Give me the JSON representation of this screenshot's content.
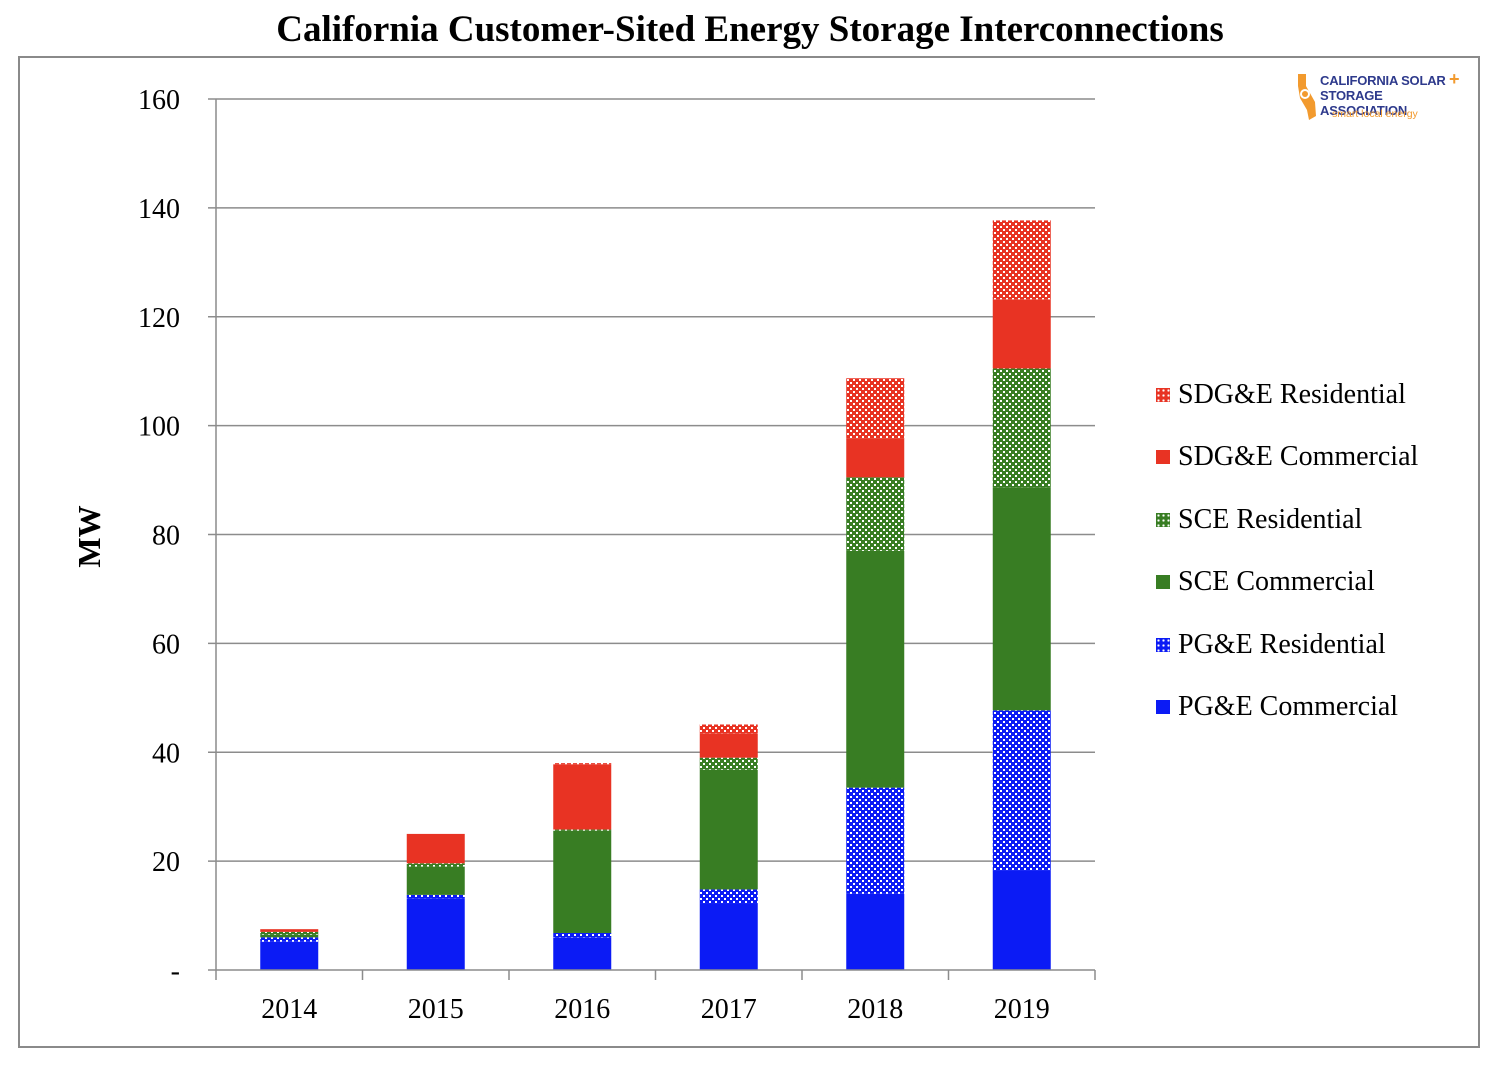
{
  "chart_data": {
    "type": "bar",
    "stacked": true,
    "title": "California Customer-Sited Energy Storage Interconnections",
    "ylabel": "MW",
    "xlabel": "",
    "ylim": [
      0,
      160
    ],
    "yticks": [
      0,
      20,
      40,
      60,
      80,
      100,
      120,
      140,
      160
    ],
    "ytick_labels": [
      "-",
      "20",
      "40",
      "60",
      "80",
      "100",
      "120",
      "140",
      "160"
    ],
    "grid": true,
    "legend_position": "right",
    "categories": [
      "2014",
      "2015",
      "2016",
      "2017",
      "2018",
      "2019"
    ],
    "series": [
      {
        "name": "PG&E Commercial",
        "color": "#0b1bf5",
        "pattern": "solid",
        "values": [
          5.2,
          13.2,
          6.0,
          12.3,
          14.0,
          18.2
        ]
      },
      {
        "name": "PG&E Residential",
        "color": "#0b1bf5",
        "pattern": "dotted",
        "values": [
          0.8,
          0.6,
          0.8,
          2.5,
          19.5,
          29.5
        ]
      },
      {
        "name": "SCE Commercial",
        "color": "#387d23",
        "pattern": "solid",
        "values": [
          0.5,
          5.2,
          18.8,
          22.0,
          43.5,
          41.0
        ]
      },
      {
        "name": "SCE Residential",
        "color": "#387d23",
        "pattern": "dotted",
        "values": [
          0.5,
          0.6,
          0.2,
          2.2,
          13.5,
          21.8
        ]
      },
      {
        "name": "SDG&E Commercial",
        "color": "#e83323",
        "pattern": "solid",
        "values": [
          0.5,
          5.4,
          12.0,
          4.5,
          7.2,
          12.7
        ]
      },
      {
        "name": "SDG&E Residential",
        "color": "#e83323",
        "pattern": "dotted",
        "values": [
          0.0,
          0.0,
          0.2,
          1.6,
          11.0,
          14.5
        ]
      }
    ]
  },
  "legend_order": [
    "SDG&E Residential",
    "SDG&E Commercial",
    "SCE Residential",
    "SCE Commercial",
    "PG&E Residential",
    "PG&E Commercial"
  ],
  "logo": {
    "line1": "CALIFORNIA SOLAR",
    "plus": "+",
    "line2": "STORAGE ASSOCIATION",
    "tagline": "smart local energy"
  }
}
